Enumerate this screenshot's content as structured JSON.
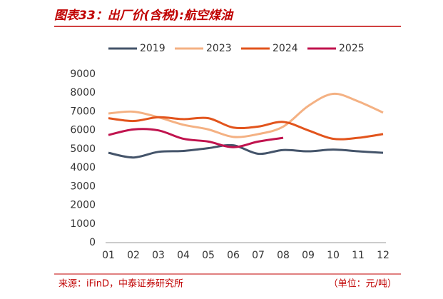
{
  "chart_data": {
    "type": "line",
    "title": "图表33：出厂价(含税):航空煤油",
    "source": "来源：iFinD，中泰证券研究所",
    "unit": "（单位：元/吨）",
    "categories": [
      "01",
      "02",
      "03",
      "04",
      "05",
      "06",
      "07",
      "08",
      "09",
      "10",
      "11",
      "12"
    ],
    "ylim": [
      0,
      9000
    ],
    "yticks": [
      0,
      1000,
      2000,
      3000,
      4000,
      5000,
      6000,
      7000,
      8000,
      9000
    ],
    "legend": "top",
    "series": [
      {
        "name": "2019",
        "color": "#44546a",
        "values": [
          4800,
          4550,
          4850,
          4900,
          5050,
          5200,
          4750,
          4950,
          4880,
          4970,
          4880,
          4800
        ]
      },
      {
        "name": "2023",
        "color": "#f4b183",
        "values": [
          6900,
          7000,
          6700,
          6300,
          6050,
          5650,
          5800,
          6200,
          7300,
          7950,
          7550,
          6950
        ]
      },
      {
        "name": "2024",
        "color": "#e2541c",
        "values": [
          6650,
          6500,
          6700,
          6600,
          6650,
          6150,
          6200,
          6450,
          6000,
          5550,
          5600,
          5800
        ]
      },
      {
        "name": "2025",
        "color": "#c0134e",
        "values": [
          5750,
          6050,
          6000,
          5550,
          5400,
          5100,
          5400,
          5600,
          null,
          null,
          null,
          null
        ]
      }
    ]
  }
}
